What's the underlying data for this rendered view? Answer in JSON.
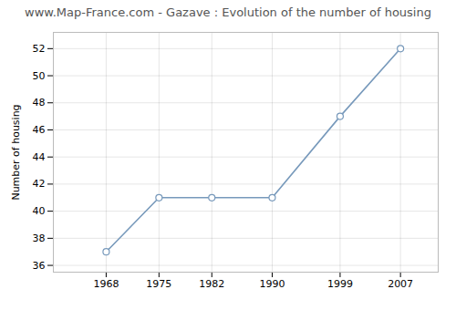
{
  "chart_data": {
    "type": "line",
    "title": "www.Map-France.com - Gazave : Evolution of the number of housing",
    "ylabel": "Number of housing",
    "x": [
      1968,
      1975,
      1982,
      1990,
      1999,
      2007
    ],
    "values": [
      37,
      41,
      41,
      41,
      47,
      52
    ],
    "color": "#7799bb",
    "marker": "circle",
    "xlim": [
      1961,
      2012
    ],
    "xticks": [
      1968,
      1975,
      1982,
      1990,
      1999,
      2007
    ],
    "ylim": [
      35.5,
      53.2
    ],
    "yticks": [
      36,
      38,
      40,
      42,
      44,
      46,
      48,
      50,
      52
    ],
    "grid": true
  }
}
